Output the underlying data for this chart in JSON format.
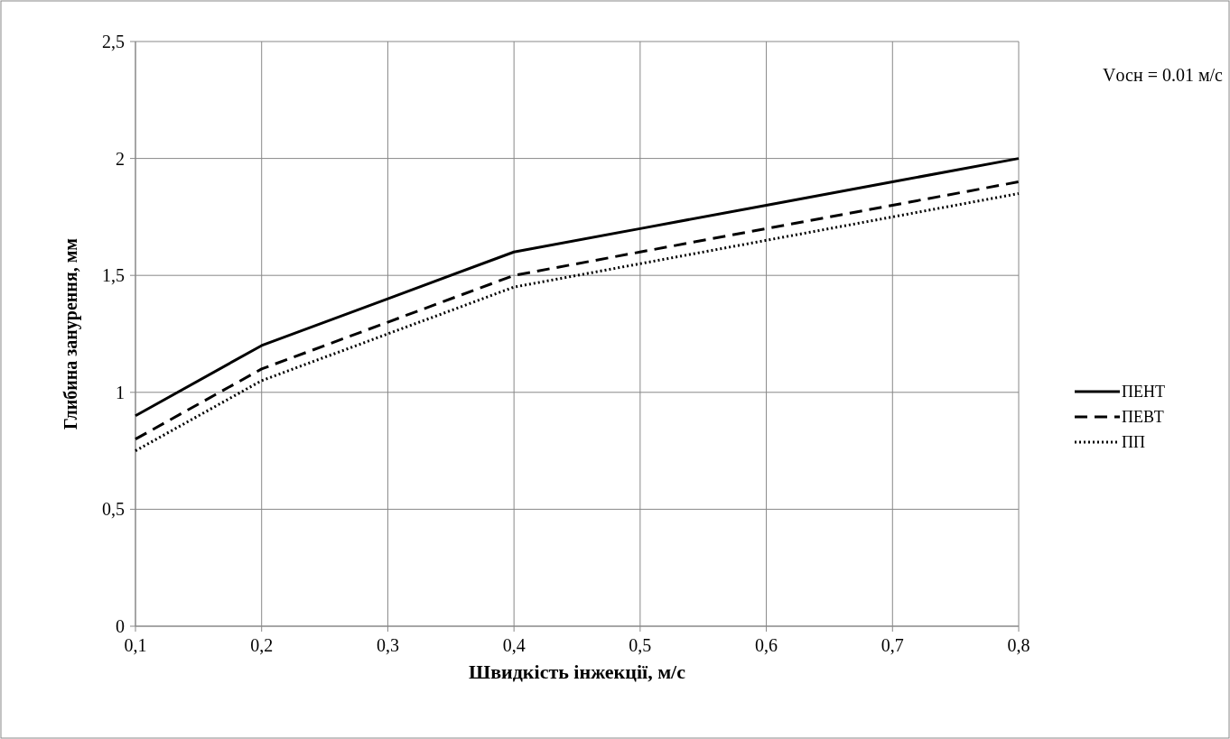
{
  "chart_data": {
    "type": "line",
    "xlabel": "Швидкість інжекції, м/с",
    "ylabel": "Глибина занурення, мм",
    "annotations": [
      "Vосн = 0.01 м/с"
    ],
    "x": [
      0.1,
      0.2,
      0.3,
      0.4,
      0.5,
      0.6,
      0.7,
      0.8
    ],
    "series": [
      {
        "name": "ПЕНТ",
        "color": "#000000",
        "line_style": "solid",
        "values": [
          0.9,
          1.2,
          1.4,
          1.6,
          1.7,
          1.8,
          1.9,
          2.0
        ]
      },
      {
        "name": "ПЕВТ",
        "color": "#000000",
        "line_style": "dashed",
        "values": [
          0.8,
          1.1,
          1.3,
          1.5,
          1.6,
          1.7,
          1.8,
          1.9
        ]
      },
      {
        "name": "ПП",
        "color": "#000000",
        "line_style": "dotted",
        "values": [
          0.75,
          1.05,
          1.25,
          1.45,
          1.55,
          1.65,
          1.75,
          1.85
        ]
      }
    ],
    "xlim": [
      0.1,
      0.8
    ],
    "xticks": [
      {
        "value": 0.1,
        "label": "0,1"
      },
      {
        "value": 0.2,
        "label": "0,2"
      },
      {
        "value": 0.3,
        "label": "0,3"
      },
      {
        "value": 0.4,
        "label": "0,4"
      },
      {
        "value": 0.5,
        "label": "0,5"
      },
      {
        "value": 0.6,
        "label": "0,6"
      },
      {
        "value": 0.7,
        "label": "0,7"
      },
      {
        "value": 0.8,
        "label": "0,8"
      }
    ],
    "ylim": [
      0,
      2.5
    ],
    "yticks": [
      0,
      {
        "value": 0.5,
        "label": "0,5"
      },
      1,
      {
        "value": 1.5,
        "label": "1,5"
      },
      2,
      {
        "value": 2.5,
        "label": "2,5"
      }
    ],
    "grid": true,
    "legend": "right"
  }
}
